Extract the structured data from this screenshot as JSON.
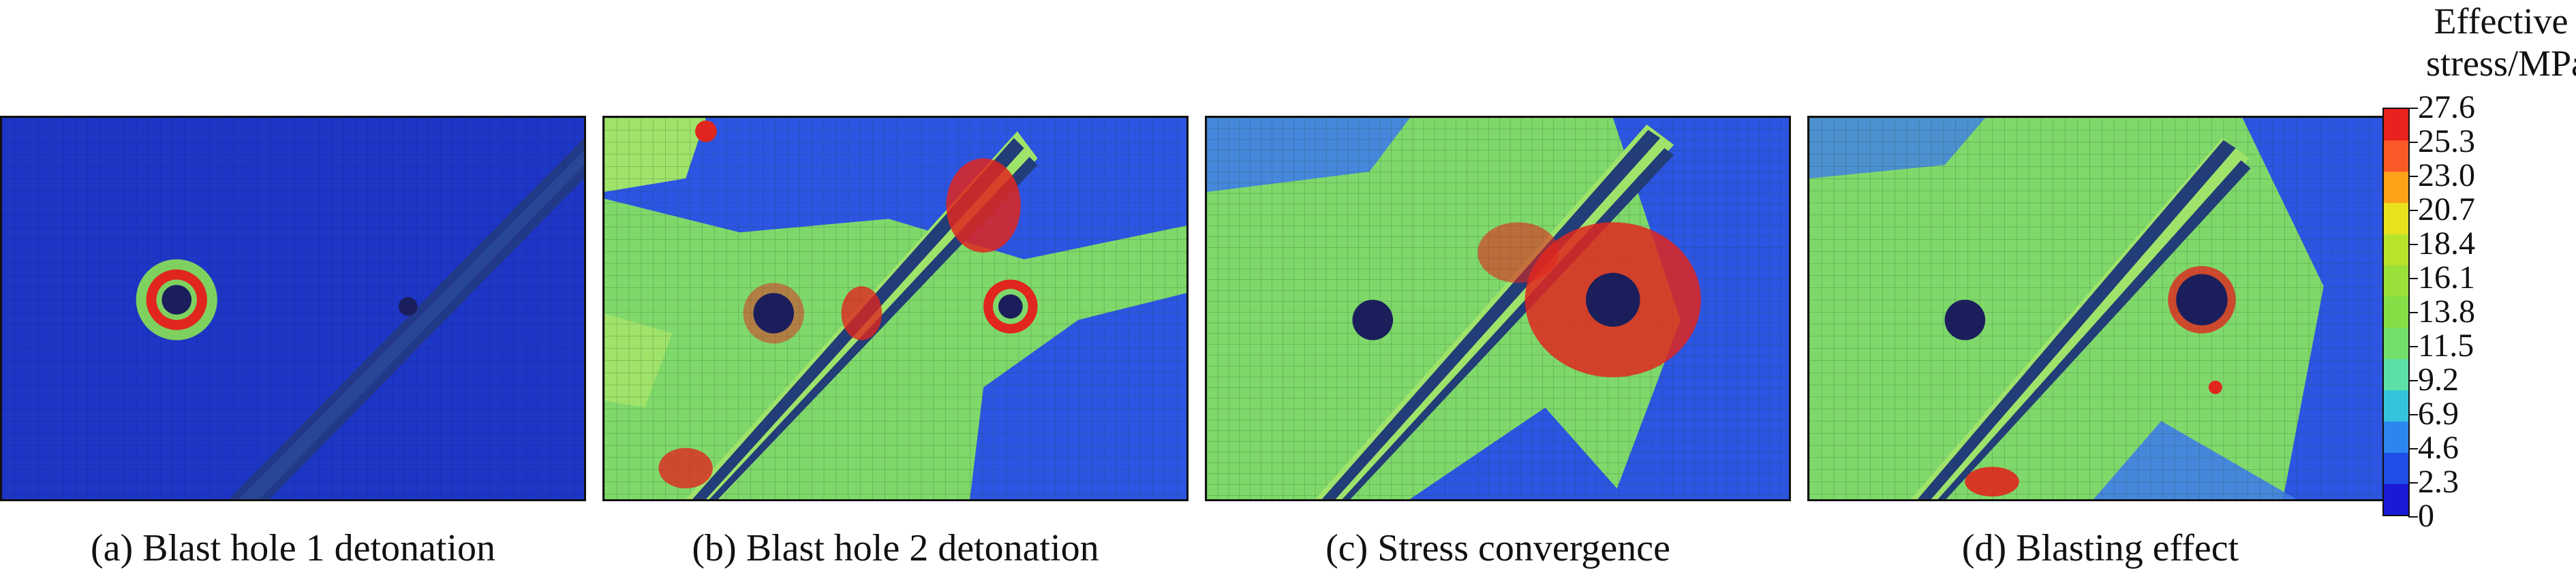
{
  "panels": [
    {
      "caption": "(a) Blast hole 1 detonation"
    },
    {
      "caption": "(b) Blast hole 2 detonation"
    },
    {
      "caption": "(c) Stress convergence"
    },
    {
      "caption": "(d) Blasting effect"
    }
  ],
  "legend": {
    "title_line1": "Effective",
    "title_line2": "stress/MPa",
    "ticks": [
      "27.6",
      "25.3",
      "23.0",
      "20.7",
      "18.4",
      "16.1",
      "13.8",
      "11.5",
      "9.2",
      "6.9",
      "4.6",
      "2.3",
      "0"
    ],
    "colors": [
      "#1a1ad6",
      "#1f4fe8",
      "#2b86f0",
      "#34c4dd",
      "#5ce0a6",
      "#72e06a",
      "#86de46",
      "#99e03a",
      "#b9e22c",
      "#e7e21c",
      "#ffa21a",
      "#fa5a28",
      "#e8221e"
    ]
  },
  "palette": {
    "deep_blue": "#1a2fc8",
    "blue": "#2c52e0",
    "green": "#7fd96a",
    "light_green": "#9fe36a",
    "red": "#e0261e",
    "dark_crack": "#2a3f7a"
  }
}
